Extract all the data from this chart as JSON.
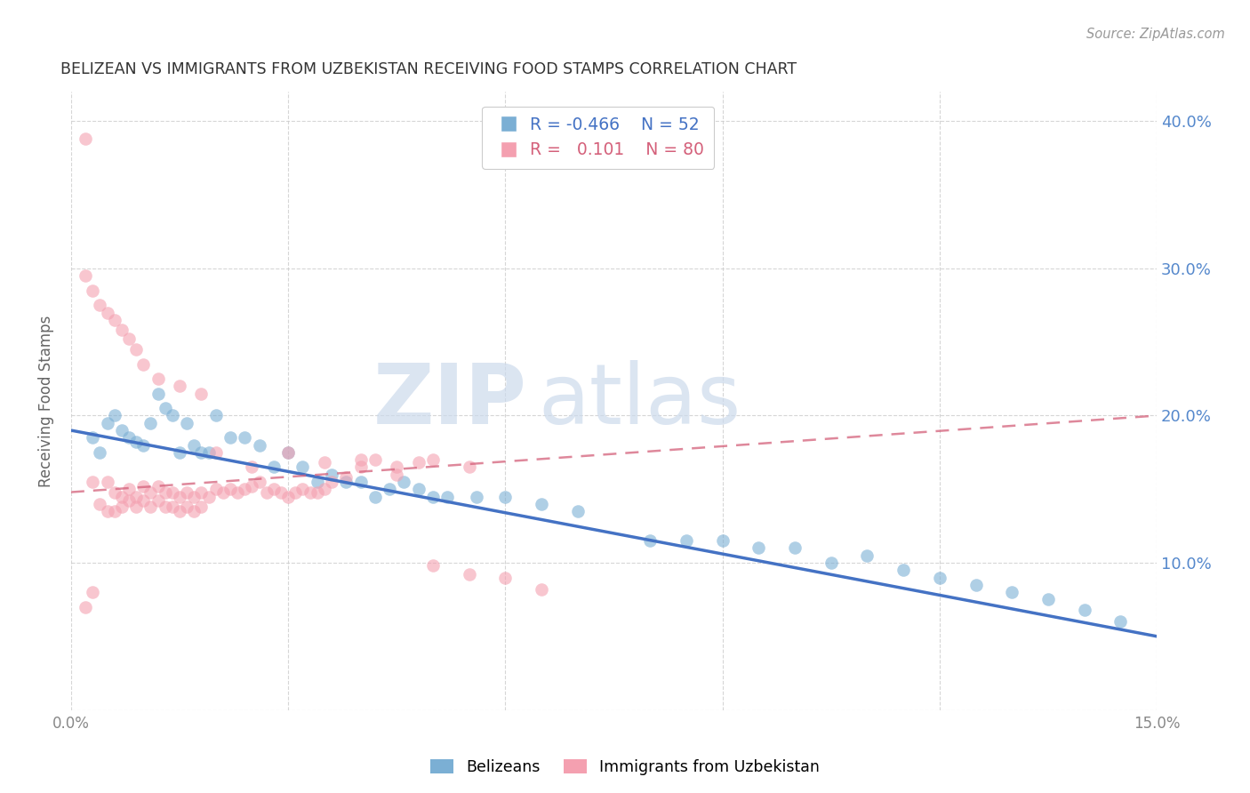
{
  "title": "BELIZEAN VS IMMIGRANTS FROM UZBEKISTAN RECEIVING FOOD STAMPS CORRELATION CHART",
  "source": "Source: ZipAtlas.com",
  "ylabel": "Receiving Food Stamps",
  "xlim": [
    0.0,
    0.15
  ],
  "ylim": [
    0.0,
    0.42
  ],
  "xticks": [
    0.0,
    0.03,
    0.06,
    0.09,
    0.12,
    0.15
  ],
  "yticks": [
    0.0,
    0.1,
    0.2,
    0.3,
    0.4
  ],
  "background_color": "#ffffff",
  "grid_color": "#cccccc",
  "blue_color": "#7bafd4",
  "pink_color": "#f4a0b0",
  "blue_line_color": "#4472c4",
  "pink_line_color": "#d4607a",
  "legend_R_blue": "-0.466",
  "legend_N_blue": "52",
  "legend_R_pink": "0.101",
  "legend_N_pink": "80",
  "watermark_zip": "ZIP",
  "watermark_atlas": "atlas",
  "blue_scatter_x": [
    0.003,
    0.004,
    0.005,
    0.006,
    0.007,
    0.008,
    0.009,
    0.01,
    0.011,
    0.012,
    0.013,
    0.014,
    0.015,
    0.016,
    0.017,
    0.018,
    0.019,
    0.02,
    0.022,
    0.024,
    0.026,
    0.028,
    0.03,
    0.032,
    0.034,
    0.036,
    0.038,
    0.04,
    0.042,
    0.044,
    0.046,
    0.048,
    0.05,
    0.052,
    0.056,
    0.06,
    0.065,
    0.07,
    0.08,
    0.085,
    0.09,
    0.095,
    0.1,
    0.105,
    0.11,
    0.115,
    0.12,
    0.125,
    0.13,
    0.135,
    0.14,
    0.145
  ],
  "blue_scatter_y": [
    0.185,
    0.175,
    0.195,
    0.2,
    0.19,
    0.185,
    0.182,
    0.18,
    0.195,
    0.215,
    0.205,
    0.2,
    0.175,
    0.195,
    0.18,
    0.175,
    0.175,
    0.2,
    0.185,
    0.185,
    0.18,
    0.165,
    0.175,
    0.165,
    0.155,
    0.16,
    0.155,
    0.155,
    0.145,
    0.15,
    0.155,
    0.15,
    0.145,
    0.145,
    0.145,
    0.145,
    0.14,
    0.135,
    0.115,
    0.115,
    0.115,
    0.11,
    0.11,
    0.1,
    0.105,
    0.095,
    0.09,
    0.085,
    0.08,
    0.075,
    0.068,
    0.06
  ],
  "pink_scatter_x": [
    0.002,
    0.003,
    0.004,
    0.005,
    0.005,
    0.006,
    0.006,
    0.007,
    0.007,
    0.008,
    0.008,
    0.009,
    0.009,
    0.01,
    0.01,
    0.011,
    0.011,
    0.012,
    0.012,
    0.013,
    0.013,
    0.014,
    0.014,
    0.015,
    0.015,
    0.016,
    0.016,
    0.017,
    0.017,
    0.018,
    0.018,
    0.019,
    0.02,
    0.021,
    0.022,
    0.023,
    0.024,
    0.025,
    0.026,
    0.027,
    0.028,
    0.029,
    0.03,
    0.031,
    0.032,
    0.033,
    0.034,
    0.035,
    0.036,
    0.038,
    0.04,
    0.042,
    0.045,
    0.048,
    0.05,
    0.055,
    0.06,
    0.065,
    0.002,
    0.003,
    0.004,
    0.005,
    0.006,
    0.007,
    0.008,
    0.009,
    0.01,
    0.012,
    0.015,
    0.018,
    0.02,
    0.025,
    0.03,
    0.035,
    0.04,
    0.045,
    0.05,
    0.055,
    0.003,
    0.002
  ],
  "pink_scatter_y": [
    0.388,
    0.155,
    0.14,
    0.135,
    0.155,
    0.148,
    0.135,
    0.145,
    0.138,
    0.15,
    0.142,
    0.145,
    0.138,
    0.152,
    0.142,
    0.148,
    0.138,
    0.152,
    0.142,
    0.148,
    0.138,
    0.148,
    0.138,
    0.145,
    0.135,
    0.148,
    0.138,
    0.145,
    0.135,
    0.148,
    0.138,
    0.145,
    0.15,
    0.148,
    0.15,
    0.148,
    0.15,
    0.152,
    0.155,
    0.148,
    0.15,
    0.148,
    0.145,
    0.148,
    0.15,
    0.148,
    0.148,
    0.15,
    0.155,
    0.158,
    0.165,
    0.17,
    0.16,
    0.168,
    0.17,
    0.165,
    0.09,
    0.082,
    0.295,
    0.285,
    0.275,
    0.27,
    0.265,
    0.258,
    0.252,
    0.245,
    0.235,
    0.225,
    0.22,
    0.215,
    0.175,
    0.165,
    0.175,
    0.168,
    0.17,
    0.165,
    0.098,
    0.092,
    0.08,
    0.07
  ],
  "blue_line_x0": 0.0,
  "blue_line_y0": 0.19,
  "blue_line_x1": 0.15,
  "blue_line_y1": 0.05,
  "pink_line_x0": 0.0,
  "pink_line_y0": 0.148,
  "pink_line_x1": 0.15,
  "pink_line_y1": 0.2
}
